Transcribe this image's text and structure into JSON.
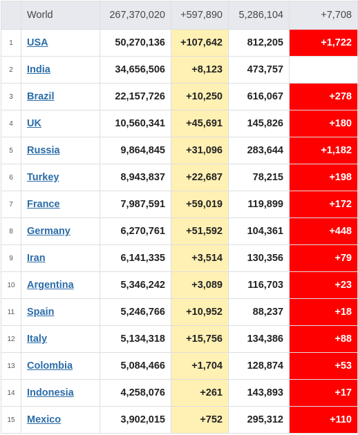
{
  "world": {
    "label": "World",
    "total_cases": "267,370,020",
    "new_cases": "+597,890",
    "total_deaths": "5,286,104",
    "new_deaths": "+7,708"
  },
  "rows": [
    {
      "rank": "1",
      "country": "USA",
      "total_cases": "50,270,136",
      "new_cases": "+107,642",
      "total_deaths": "812,205",
      "new_deaths": "+1,722"
    },
    {
      "rank": "2",
      "country": "India",
      "total_cases": "34,656,506",
      "new_cases": "+8,123",
      "total_deaths": "473,757",
      "new_deaths": ""
    },
    {
      "rank": "3",
      "country": "Brazil",
      "total_cases": "22,157,726",
      "new_cases": "+10,250",
      "total_deaths": "616,067",
      "new_deaths": "+278"
    },
    {
      "rank": "4",
      "country": "UK",
      "total_cases": "10,560,341",
      "new_cases": "+45,691",
      "total_deaths": "145,826",
      "new_deaths": "+180"
    },
    {
      "rank": "5",
      "country": "Russia",
      "total_cases": "9,864,845",
      "new_cases": "+31,096",
      "total_deaths": "283,644",
      "new_deaths": "+1,182"
    },
    {
      "rank": "6",
      "country": "Turkey",
      "total_cases": "8,943,837",
      "new_cases": "+22,687",
      "total_deaths": "78,215",
      "new_deaths": "+198"
    },
    {
      "rank": "7",
      "country": "France",
      "total_cases": "7,987,591",
      "new_cases": "+59,019",
      "total_deaths": "119,899",
      "new_deaths": "+172"
    },
    {
      "rank": "8",
      "country": "Germany",
      "total_cases": "6,270,761",
      "new_cases": "+51,592",
      "total_deaths": "104,361",
      "new_deaths": "+448"
    },
    {
      "rank": "9",
      "country": "Iran",
      "total_cases": "6,141,335",
      "new_cases": "+3,514",
      "total_deaths": "130,356",
      "new_deaths": "+79"
    },
    {
      "rank": "10",
      "country": "Argentina",
      "total_cases": "5,346,242",
      "new_cases": "+3,089",
      "total_deaths": "116,703",
      "new_deaths": "+23"
    },
    {
      "rank": "11",
      "country": "Spain",
      "total_cases": "5,246,766",
      "new_cases": "+10,952",
      "total_deaths": "88,237",
      "new_deaths": "+18"
    },
    {
      "rank": "12",
      "country": "Italy",
      "total_cases": "5,134,318",
      "new_cases": "+15,756",
      "total_deaths": "134,386",
      "new_deaths": "+88"
    },
    {
      "rank": "13",
      "country": "Colombia",
      "total_cases": "5,084,466",
      "new_cases": "+1,704",
      "total_deaths": "128,874",
      "new_deaths": "+53"
    },
    {
      "rank": "14",
      "country": "Indonesia",
      "total_cases": "4,258,076",
      "new_cases": "+261",
      "total_deaths": "143,893",
      "new_deaths": "+17"
    },
    {
      "rank": "15",
      "country": "Mexico",
      "total_cases": "3,902,015",
      "new_cases": "+752",
      "total_deaths": "295,312",
      "new_deaths": "+110"
    }
  ],
  "colors": {
    "world_row_bg": "#e7e9ee",
    "new_cases_bg": "#fff0b3",
    "new_deaths_bg": "#ff0000",
    "link": "#2b6ca8"
  }
}
